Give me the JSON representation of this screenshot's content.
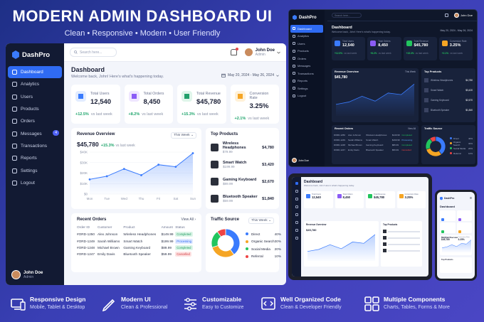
{
  "hero": {
    "title": "MODERN ADMIN DASHBOARD UI",
    "subtitle": "Clean • Responsive • Modern • User Friendly"
  },
  "main": {
    "brand": "DashPro",
    "nav": [
      {
        "label": "Dashboard",
        "icon": "grid-icon",
        "active": true
      },
      {
        "label": "Analytics",
        "icon": "analytics-icon"
      },
      {
        "label": "Users",
        "icon": "users-icon"
      },
      {
        "label": "Products",
        "icon": "box-icon"
      },
      {
        "label": "Orders",
        "icon": "cart-icon"
      },
      {
        "label": "Messages",
        "icon": "message-icon",
        "badge": "4"
      },
      {
        "label": "Transactions",
        "icon": "wallet-icon"
      },
      {
        "label": "Reports",
        "icon": "report-icon"
      },
      {
        "label": "Settings",
        "icon": "gear-icon"
      },
      {
        "label": "Logout",
        "icon": "logout-icon"
      }
    ],
    "user": {
      "name": "John Doe",
      "role": "Admin"
    },
    "search_placeholder": "Search here...",
    "title": "Dashboard",
    "welcome": "Welcome back, John! Here's what's happening today.",
    "date_range": "May 20, 2024 - May 26, 2024",
    "stats": [
      {
        "label": "Total Users",
        "value": "12,540",
        "change": "+12.5%",
        "note": "vs last week",
        "color": "#3a7bfd",
        "bg": "#e2ecff"
      },
      {
        "label": "Total Orders",
        "value": "8,450",
        "change": "+8.2%",
        "note": "vs last week",
        "color": "#8b5cf6",
        "bg": "#efe6ff"
      },
      {
        "label": "Total Revenue",
        "value": "$45,780",
        "change": "+15.3%",
        "note": "vs last week",
        "color": "#22a06b",
        "bg": "#dff5ea"
      },
      {
        "label": "Conversion Rate",
        "value": "3.25%",
        "change": "+2.1%",
        "note": "vs last week",
        "color": "#f5a524",
        "bg": "#fff1d8"
      }
    ],
    "revenue": {
      "title": "Revenue Overview",
      "filter": "This Week",
      "value": "$45,780",
      "change": "+15.3%",
      "note": "vs last week"
    },
    "top_products": {
      "title": "Top Products",
      "items": [
        {
          "name": "Wireless Headphones",
          "price": "$79.99",
          "amount": "$4,780",
          "icon": "headphones-icon"
        },
        {
          "name": "Smart Watch",
          "price": "$199.99",
          "amount": "$3,420",
          "icon": "watch-icon"
        },
        {
          "name": "Gaming Keyboard",
          "price": "$89.99",
          "amount": "$2,670",
          "icon": "keyboard-icon"
        },
        {
          "name": "Bluetooth Speaker",
          "price": "$59.99",
          "amount": "$1,840",
          "icon": "speaker-icon"
        }
      ]
    },
    "orders": {
      "title": "Recent Orders",
      "view_all": "View All",
      "columns": [
        "Order ID",
        "Customer",
        "Product",
        "Amount",
        "Status"
      ],
      "rows": [
        [
          "#ORD-1250",
          "Alex Johnson",
          "Wireless Headphones",
          "$149.99",
          "Completed"
        ],
        [
          "#ORD-1249",
          "Sarah Williams",
          "Smart Watch",
          "$199.99",
          "Processing"
        ],
        [
          "#ORD-1248",
          "Michael Brown",
          "Gaming Keyboard",
          "$89.99",
          "Completed"
        ],
        [
          "#ORD-1247",
          "Emily Davis",
          "Bluetooth Speaker",
          "$59.99",
          "Cancelled"
        ]
      ]
    },
    "traffic": {
      "title": "Traffic Source",
      "filter": "This Week",
      "sources": [
        {
          "label": "Direct",
          "pct": "40%",
          "color": "#3a7bfd"
        },
        {
          "label": "Organic Search",
          "pct": "30%",
          "color": "#f5a524"
        },
        {
          "label": "Social Media",
          "pct": "20%",
          "color": "#22c55e"
        },
        {
          "label": "Referral",
          "pct": "10%",
          "color": "#ef4444"
        }
      ]
    }
  },
  "chart_data": [
    {
      "type": "area",
      "x": [
        "Mon",
        "Tue",
        "Wed",
        "Thu",
        "Fri",
        "Sat",
        "Sun"
      ],
      "y": [
        14000,
        17000,
        24000,
        18000,
        28000,
        26000,
        39000
      ],
      "yticks": [
        "$40K",
        "$30K",
        "$20K",
        "$10K",
        "$0"
      ],
      "ylim": [
        0,
        40000
      ]
    },
    {
      "type": "pie",
      "categories": [
        "Direct",
        "Organic Search",
        "Social Media",
        "Referral"
      ],
      "values": [
        40,
        30,
        20,
        10
      ]
    }
  ],
  "dark": {
    "brand": "DashPro",
    "nav": [
      "Dashboard",
      "Analytics",
      "Users",
      "Products",
      "Orders",
      "Messages",
      "Transactions",
      "Reports",
      "Settings",
      "Logout"
    ],
    "search": "Search here...",
    "user": "John Doe",
    "title": "Dashboard",
    "welcome": "Welcome back, John! Here's what's happening today.",
    "date": "May 20, 2024 - May 26, 2024",
    "stats": [
      {
        "label": "Total Users",
        "value": "12,540",
        "change": "+12.5%",
        "color": "#3a7bfd"
      },
      {
        "label": "Total Orders",
        "value": "8,450",
        "change": "+8.2%",
        "color": "#8b5cf6"
      },
      {
        "label": "Total Revenue",
        "value": "$45,780",
        "change": "+15.3%",
        "color": "#22c55e"
      },
      {
        "label": "Conversion Rate",
        "value": "3.25%",
        "change": "+2.1%",
        "color": "#f5a524"
      }
    ],
    "note": "vs last week",
    "revenue_title": "Revenue Overview",
    "revenue_value": "$45,780",
    "filter": "This Week",
    "top_title": "Top Products",
    "products": [
      {
        "name": "Wireless Headphones",
        "amount": "$4,780"
      },
      {
        "name": "Smart Watch",
        "amount": "$3,420"
      },
      {
        "name": "Gaming Keyboard",
        "amount": "$2,670"
      },
      {
        "name": "Bluetooth Speaker",
        "amount": "$1,840"
      }
    ],
    "orders_title": "Recent Orders",
    "view_all": "View All",
    "traffic_title": "Traffic Source"
  },
  "tablet": {
    "title": "Dashboard",
    "welcome": "Welcome back, John! Here's what's happening today.",
    "stats": [
      {
        "label": "Total Users",
        "value": "12,540",
        "color": "#3a7bfd"
      },
      {
        "label": "Total Orders",
        "value": "8,450",
        "color": "#8b5cf6"
      },
      {
        "label": "Total Revenue",
        "value": "$45,780",
        "color": "#22c55e"
      },
      {
        "label": "Conversion Rate",
        "value": "3.25%",
        "color": "#f5a524"
      }
    ],
    "revenue_title": "Revenue Overview",
    "revenue_value": "$45,780",
    "top_title": "Top Products"
  },
  "phone": {
    "brand": "DashPro",
    "title": "Dashboard",
    "stats": [
      {
        "label": "Total Users",
        "value": "12,540",
        "color": "#3a7bfd"
      },
      {
        "label": "Total Orders",
        "value": "8,450",
        "color": "#8b5cf6"
      },
      {
        "label": "Total Revenue",
        "value": "$45,780",
        "color": "#22c55e"
      },
      {
        "label": "Conversion Rate",
        "value": "3.25%",
        "color": "#f5a524"
      }
    ],
    "revenue_title": "Revenue Overview",
    "top_title": "Top Products"
  },
  "features": [
    {
      "title": "Responsive Design",
      "sub": "Mobile, Tablet & Desktop",
      "icon": "devices-icon"
    },
    {
      "title": "Modern UI",
      "sub": "Clean & Professional",
      "icon": "pen-icon"
    },
    {
      "title": "Customizable",
      "sub": "Easy to Customize",
      "icon": "sliders-icon"
    },
    {
      "title": "Well Organized Code",
      "sub": "Clean & Developer Friendly",
      "icon": "code-icon"
    },
    {
      "title": "Multiple Components",
      "sub": "Charts, Tables, Forms & More",
      "icon": "components-icon"
    }
  ]
}
